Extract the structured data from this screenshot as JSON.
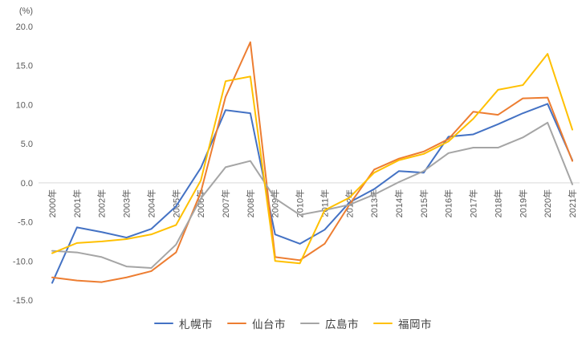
{
  "chart_data": {
    "type": "line",
    "title": "",
    "unit_label": "(%)",
    "categories": [
      "2000年",
      "2001年",
      "2002年",
      "2003年",
      "2004年",
      "2005年",
      "2006年",
      "2007年",
      "2008年",
      "2009年",
      "2010年",
      "2011年",
      "2012年",
      "2013年",
      "2014年",
      "2015年",
      "2016年",
      "2017年",
      "2018年",
      "2019年",
      "2020年",
      "2021年"
    ],
    "series": [
      {
        "name": "札幌市",
        "color": "#4472C4",
        "values": [
          -12.8,
          -5.7,
          -6.3,
          -7.0,
          -5.9,
          -3.0,
          1.9,
          9.3,
          8.9,
          -6.6,
          -7.8,
          -6.0,
          -2.5,
          -0.8,
          1.5,
          1.3,
          5.9,
          6.2,
          7.5,
          8.9,
          10.1,
          2.9
        ]
      },
      {
        "name": "仙台市",
        "color": "#ED7D31",
        "values": [
          -12.1,
          -12.5,
          -12.7,
          -12.1,
          -11.3,
          -8.9,
          -1.2,
          11.0,
          18.0,
          -9.5,
          -9.9,
          -7.8,
          -2.8,
          1.7,
          3.1,
          4.0,
          5.6,
          9.1,
          8.7,
          10.8,
          10.9,
          2.8
        ]
      },
      {
        "name": "広島市",
        "color": "#A5A5A5",
        "values": [
          -8.7,
          -8.9,
          -9.5,
          -10.7,
          -10.9,
          -7.9,
          -2.0,
          2.0,
          2.8,
          -2.0,
          -4.1,
          -3.5,
          -2.8,
          -1.5,
          0.1,
          1.5,
          3.8,
          4.5,
          4.5,
          5.8,
          7.7,
          -0.2
        ]
      },
      {
        "name": "福岡市",
        "color": "#FFC000",
        "values": [
          -9.0,
          -7.7,
          -7.5,
          -7.2,
          -6.6,
          -5.4,
          0.3,
          13.0,
          13.6,
          -10.0,
          -10.3,
          -3.5,
          -1.9,
          1.3,
          2.9,
          3.7,
          5.3,
          8.2,
          11.9,
          12.5,
          16.5,
          6.8
        ]
      }
    ],
    "ylim": [
      -15,
      20
    ],
    "ytick_step": 5,
    "ytick_labels": [
      "20.0",
      "15.0",
      "10.0",
      "5.0",
      "0.0",
      "-5.0",
      "-10.0",
      "-15.0"
    ],
    "grid": "zero-line-only",
    "legend_position": "bottom",
    "xlabel": "",
    "ylabel": "(%)",
    "colors": {
      "zero_line": "#D9D9D9",
      "axis_text": "#595959",
      "legend_text": "#404040",
      "background": "#FFFFFF"
    }
  }
}
